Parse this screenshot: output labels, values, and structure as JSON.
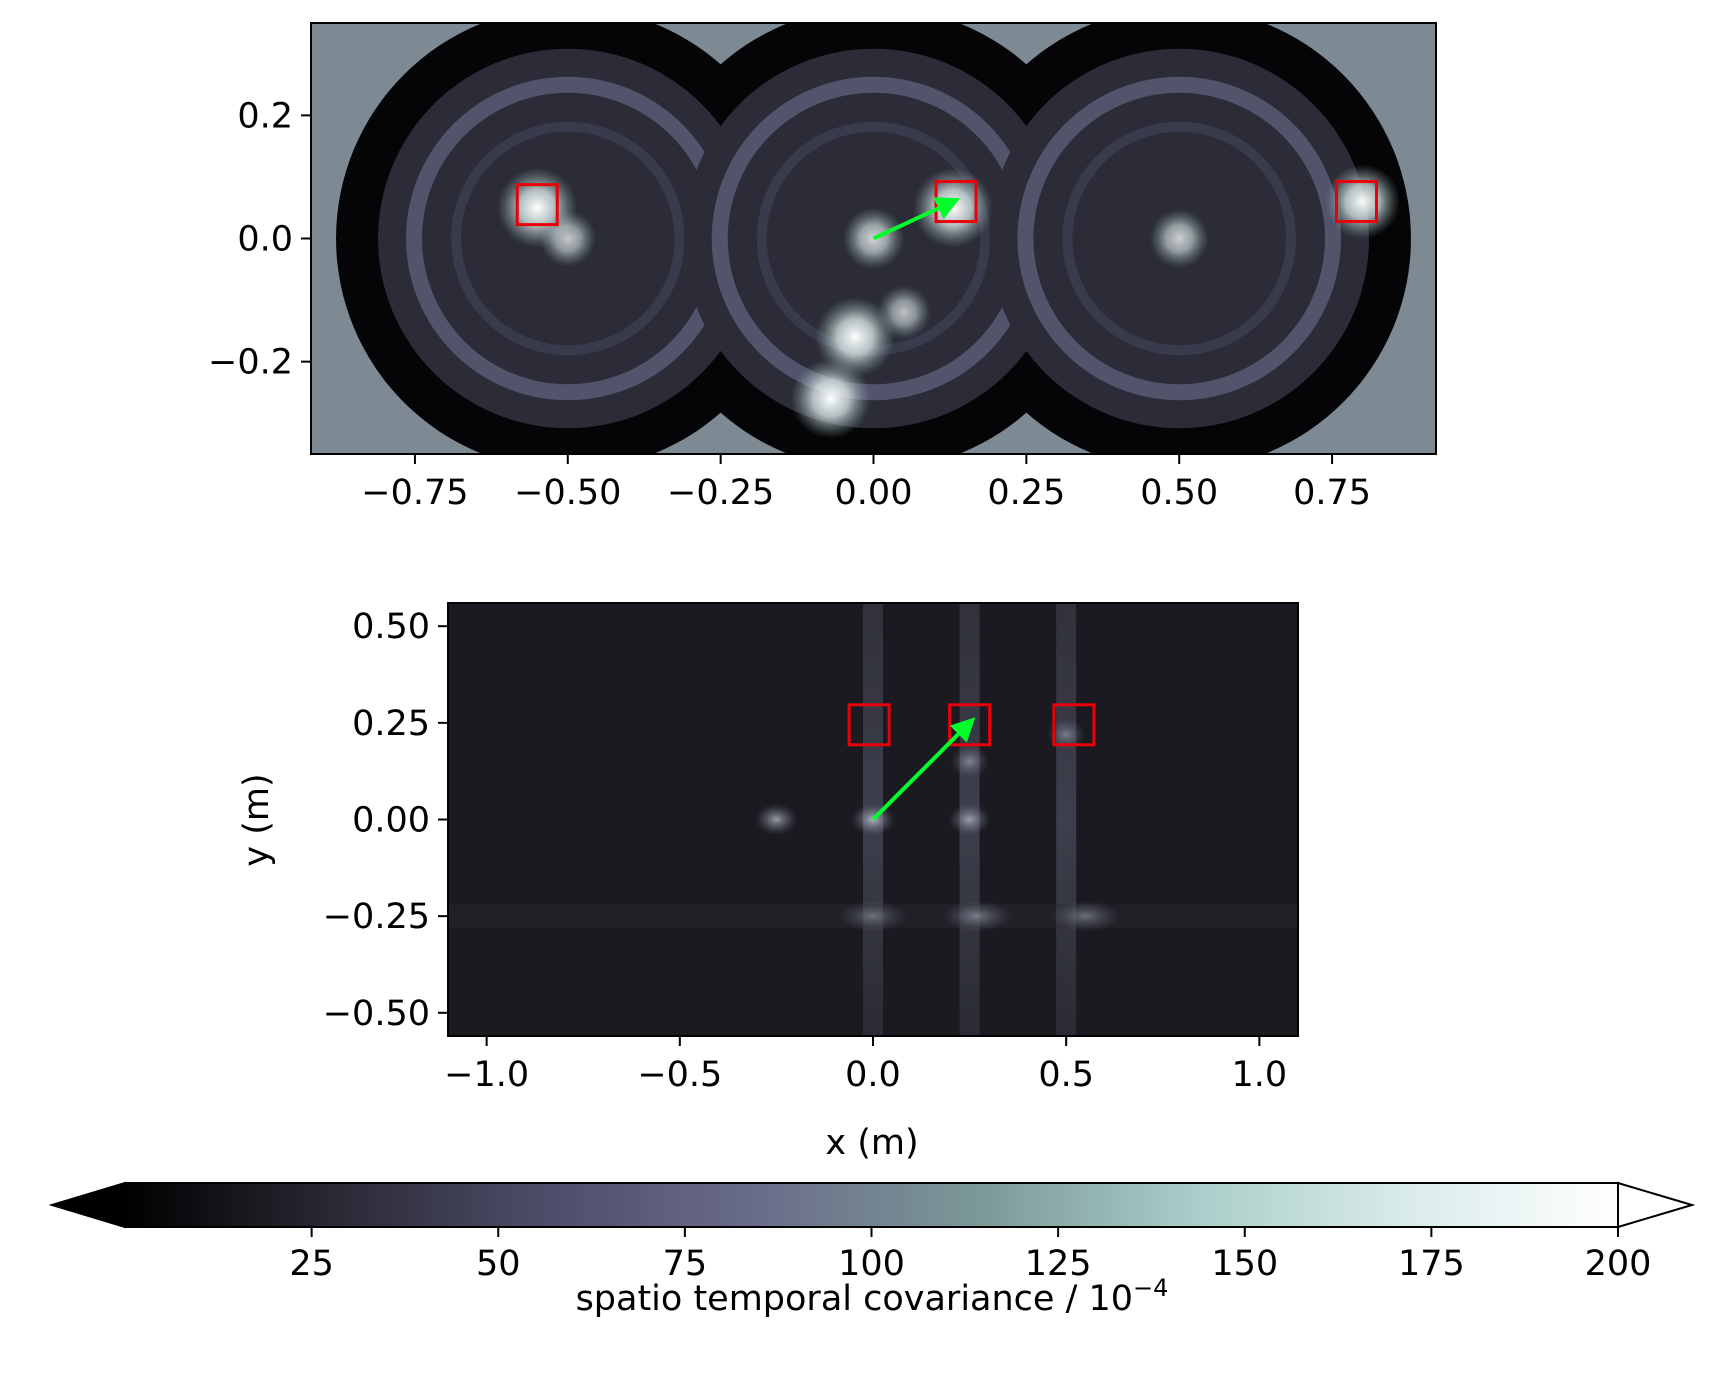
{
  "chart_data": [
    {
      "type": "heatmap",
      "title": "",
      "xlabel": "",
      "ylabel": "",
      "xlim": [
        -0.92,
        0.92
      ],
      "ylim": [
        -0.35,
        0.35
      ],
      "xticks": [
        -0.75,
        -0.5,
        -0.25,
        0.0,
        0.25,
        0.5,
        0.75
      ],
      "xtick_labels": [
        "−0.75",
        "−0.50",
        "−0.25",
        "0.00",
        "0.25",
        "0.50",
        "0.75"
      ],
      "yticks": [
        0.2,
        0.0,
        -0.2
      ],
      "ytick_labels": [
        "0.2",
        "0.0",
        "−0.2"
      ],
      "rings": [
        {
          "cx": -0.5,
          "cy": 0.0,
          "r": 0.33
        },
        {
          "cx": 0.0,
          "cy": 0.0,
          "r": 0.33
        },
        {
          "cx": 0.5,
          "cy": 0.0,
          "r": 0.33
        }
      ],
      "hotspots": [
        {
          "x": -0.55,
          "y": 0.05,
          "level": 1.0
        },
        {
          "x": -0.5,
          "y": 0.0,
          "level": 0.55
        },
        {
          "x": 0.0,
          "y": 0.0,
          "level": 0.65
        },
        {
          "x": 0.13,
          "y": 0.05,
          "level": 1.0
        },
        {
          "x": 0.5,
          "y": 0.0,
          "level": 0.6
        },
        {
          "x": 0.8,
          "y": 0.06,
          "level": 0.9
        },
        {
          "x": -0.03,
          "y": -0.16,
          "level": 1.0
        },
        {
          "x": -0.07,
          "y": -0.26,
          "level": 1.0
        },
        {
          "x": 0.05,
          "y": -0.12,
          "level": 0.5
        }
      ],
      "boxes": [
        {
          "x": -0.55,
          "y": 0.055
        },
        {
          "x": 0.135,
          "y": 0.06
        },
        {
          "x": 0.79,
          "y": 0.06
        }
      ],
      "arrow": {
        "from": [
          0.0,
          0.0
        ],
        "to": [
          0.13,
          0.06
        ]
      }
    },
    {
      "type": "heatmap",
      "title": "",
      "xlabel": "x (m)",
      "ylabel": "y (m)",
      "xlim": [
        -1.1,
        1.1
      ],
      "ylim": [
        -0.56,
        0.56
      ],
      "xticks": [
        -1.0,
        -0.5,
        0.0,
        0.5,
        1.0
      ],
      "xtick_labels": [
        "−1.0",
        "−0.5",
        "0.0",
        "0.5",
        "1.0"
      ],
      "yticks": [
        0.5,
        0.25,
        0.0,
        -0.25,
        -0.5
      ],
      "ytick_labels": [
        "0.50",
        "0.25",
        "0.00",
        "−0.25",
        "−0.50"
      ],
      "streaks": [
        0.0,
        0.25,
        0.5
      ],
      "hotspots": [
        {
          "x": -0.25,
          "y": 0.0,
          "level": 0.6
        },
        {
          "x": 0.0,
          "y": 0.0,
          "level": 0.7
        },
        {
          "x": 0.25,
          "y": 0.0,
          "level": 0.55
        },
        {
          "x": 0.0,
          "y": -0.25,
          "level": 0.25
        },
        {
          "x": 0.27,
          "y": -0.25,
          "level": 0.35
        },
        {
          "x": 0.55,
          "y": -0.25,
          "level": 0.3
        },
        {
          "x": 0.25,
          "y": 0.15,
          "level": 0.35
        },
        {
          "x": 0.5,
          "y": 0.22,
          "level": 0.3
        }
      ],
      "boxes": [
        {
          "x": -0.01,
          "y": 0.245
        },
        {
          "x": 0.25,
          "y": 0.245
        },
        {
          "x": 0.52,
          "y": 0.245
        }
      ],
      "arrow": {
        "from": [
          0.0,
          0.0
        ],
        "to": [
          0.25,
          0.25
        ]
      }
    }
  ],
  "colorbar": {
    "label_main": "spatio temporal covariance / 10",
    "label_exp": "−4",
    "ticks": [
      25,
      50,
      75,
      100,
      125,
      150,
      175,
      200
    ],
    "tick_labels": [
      "25",
      "50",
      "75",
      "100",
      "125",
      "150",
      "175",
      "200"
    ],
    "vmin": 0,
    "vmax": 200,
    "extend": "both",
    "colormap": [
      "#000000",
      "#2a2a36",
      "#4f4e6a",
      "#6a6e8a",
      "#7b9897",
      "#a8cdc8",
      "#d9ebea",
      "#ffffff"
    ]
  },
  "colors": {
    "box": "#e8000b",
    "arrow": "#00ff2a",
    "frame": "#000000"
  }
}
